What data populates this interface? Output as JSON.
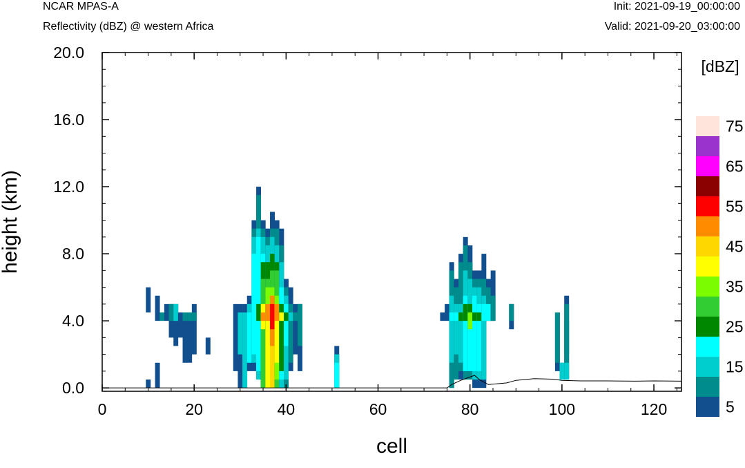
{
  "header": {
    "model": "NCAR MPAS-A",
    "field": "Reflectivity (dBZ) @ western Africa",
    "init": "Init: 2021-09-19_00:00:00",
    "valid": "Valid: 2021-09-20_03:00:00"
  },
  "chart_data": {
    "type": "heatmap",
    "xlabel": "cell",
    "ylabel": "height (km)",
    "xlim": [
      0,
      126
    ],
    "ylim": [
      -0.2,
      20
    ],
    "xticks": [
      0,
      20,
      40,
      60,
      80,
      100,
      120
    ],
    "yticks": [
      0,
      4,
      8,
      12,
      16,
      20
    ],
    "xtick_labels": [
      "0",
      "20",
      "40",
      "60",
      "80",
      "100",
      "120"
    ],
    "ytick_labels": [
      "0.0",
      "4.0",
      "8.0",
      "12.0",
      "16.0",
      "20.0"
    ],
    "colorbar": {
      "unit": "[dBZ]",
      "levels": [
        5,
        10,
        15,
        20,
        25,
        30,
        35,
        40,
        45,
        50,
        55,
        60,
        65,
        70,
        75
      ],
      "labels": [
        "5",
        "15",
        "25",
        "35",
        "45",
        "55",
        "65",
        "75"
      ],
      "colors": [
        "#124f8f",
        "#008c8c",
        "#00cdcd",
        "#00ffff",
        "#008700",
        "#32cd32",
        "#7cfc00",
        "#ffff00",
        "#ffd700",
        "#ff8c00",
        "#ff0000",
        "#8b0000",
        "#ff00ff",
        "#9a32cd",
        "#ffe4dc"
      ]
    },
    "cell_height_km": 0.5,
    "columns": [
      {
        "x": 10,
        "segs": [
          [
            0,
            0.3,
            5
          ],
          [
            4.5,
            6,
            5
          ]
        ]
      },
      {
        "x": 12,
        "segs": [
          [
            0,
            1.3,
            5
          ],
          [
            4,
            5.5,
            5
          ]
        ]
      },
      {
        "x": 13,
        "segs": [
          [
            4.3,
            4.5,
            10
          ]
        ]
      },
      {
        "x": 14,
        "segs": [
          [
            4.3,
            5,
            5
          ]
        ]
      },
      {
        "x": 15,
        "segs": [
          [
            3.3,
            4.8,
            5
          ],
          [
            4.3,
            4.6,
            10
          ]
        ]
      },
      {
        "x": 16,
        "segs": [
          [
            2.8,
            4.8,
            5
          ],
          [
            4.3,
            4.6,
            15
          ]
        ]
      },
      {
        "x": 17,
        "segs": [
          [
            3.2,
            4.5,
            5
          ]
        ]
      },
      {
        "x": 18,
        "segs": [
          [
            1.7,
            4.5,
            5
          ],
          [
            4.2,
            4.5,
            10
          ]
        ]
      },
      {
        "x": 19,
        "segs": [
          [
            1.7,
            4.5,
            5
          ],
          [
            4.2,
            4.5,
            10
          ]
        ]
      },
      {
        "x": 20,
        "segs": [
          [
            2.2,
            5,
            5
          ],
          [
            4.2,
            4.5,
            10
          ]
        ]
      },
      {
        "x": 23,
        "segs": [
          [
            2,
            3,
            5
          ]
        ]
      },
      {
        "x": 29,
        "segs": [
          [
            1.2,
            5,
            5
          ]
        ]
      },
      {
        "x": 30,
        "segs": [
          [
            0,
            5,
            5
          ],
          [
            2,
            4.5,
            15
          ]
        ]
      },
      {
        "x": 31,
        "segs": [
          [
            0,
            5,
            5
          ],
          [
            0.3,
            4.5,
            15
          ]
        ]
      },
      {
        "x": 32,
        "segs": [
          [
            1.3,
            5.2,
            5
          ],
          [
            1.5,
            4.6,
            15
          ],
          [
            1.8,
            4.4,
            20
          ]
        ]
      },
      {
        "x": 33,
        "segs": [
          [
            1.2,
            10,
            5
          ],
          [
            1.5,
            9.3,
            10
          ],
          [
            1.8,
            8.8,
            15
          ],
          [
            2.2,
            8,
            20
          ]
        ]
      },
      {
        "x": 34,
        "segs": [
          [
            0.5,
            12,
            5
          ],
          [
            0.6,
            11.3,
            10
          ],
          [
            0.8,
            9.5,
            15
          ],
          [
            1.2,
            8.6,
            20
          ],
          [
            4.3,
            4.6,
            25
          ]
        ]
      },
      {
        "x": 35,
        "segs": [
          [
            0,
            10,
            5
          ],
          [
            0,
            9.5,
            10
          ],
          [
            0,
            9,
            15
          ],
          [
            0,
            8,
            20
          ],
          [
            0,
            7.5,
            25
          ],
          [
            0,
            6.3,
            30
          ],
          [
            3.5,
            5,
            40
          ],
          [
            4.1,
            4.5,
            50
          ]
        ]
      },
      {
        "x": 36,
        "segs": [
          [
            0,
            9.5,
            5
          ],
          [
            0,
            9,
            10
          ],
          [
            0,
            8.5,
            15
          ],
          [
            0,
            7.5,
            25
          ],
          [
            0,
            6.5,
            30
          ],
          [
            0,
            5.6,
            35
          ],
          [
            0,
            5,
            40
          ],
          [
            4,
            4.6,
            50
          ]
        ]
      },
      {
        "x": 37,
        "segs": [
          [
            0,
            10.5,
            5
          ],
          [
            0,
            9.5,
            10
          ],
          [
            0,
            9,
            15
          ],
          [
            0,
            8,
            25
          ],
          [
            0,
            7,
            30
          ],
          [
            0,
            6,
            35
          ],
          [
            0,
            5.5,
            40
          ],
          [
            0,
            5.3,
            45
          ],
          [
            2.8,
            5.2,
            50
          ],
          [
            3.8,
            5,
            55
          ]
        ]
      },
      {
        "x": 38,
        "segs": [
          [
            0,
            10,
            5
          ],
          [
            0,
            9.5,
            10
          ],
          [
            0,
            8.5,
            15
          ],
          [
            0.2,
            7.5,
            25
          ],
          [
            0.2,
            6.8,
            30
          ],
          [
            0.5,
            5.2,
            35
          ],
          [
            1.5,
            4.8,
            40
          ],
          [
            4.2,
            4.6,
            50
          ]
        ]
      },
      {
        "x": 39,
        "segs": [
          [
            0,
            9.5,
            5
          ],
          [
            0,
            8.3,
            10
          ],
          [
            0.4,
            7.5,
            15
          ],
          [
            0.8,
            6,
            20
          ],
          [
            1.2,
            4.6,
            25
          ],
          [
            4.2,
            4.5,
            40
          ]
        ]
      },
      {
        "x": 40,
        "segs": [
          [
            0,
            6.5,
            5
          ],
          [
            0,
            6,
            10
          ],
          [
            0.6,
            5.5,
            15
          ],
          [
            2.8,
            5,
            20
          ],
          [
            4.2,
            4.5,
            25
          ]
        ]
      },
      {
        "x": 41,
        "segs": [
          [
            1.2,
            6,
            5
          ],
          [
            1.5,
            5,
            10
          ],
          [
            4.2,
            4.5,
            15
          ]
        ]
      },
      {
        "x": 42,
        "segs": [
          [
            2.2,
            5,
            5
          ],
          [
            4.2,
            4.5,
            10
          ]
        ]
      },
      {
        "x": 43,
        "segs": [
          [
            1.2,
            5,
            5
          ],
          [
            2.5,
            5,
            10
          ]
        ]
      },
      {
        "x": 51,
        "segs": [
          [
            0,
            2.2,
            5
          ],
          [
            0,
            2,
            10
          ],
          [
            0,
            1.8,
            15
          ],
          [
            0,
            1.3,
            20
          ]
        ]
      },
      {
        "x": 74,
        "segs": [
          [
            4.3,
            4.5,
            5
          ]
        ]
      },
      {
        "x": 75,
        "segs": [
          [
            4.1,
            4.6,
            5
          ]
        ]
      },
      {
        "x": 76,
        "segs": [
          [
            0,
            7.5,
            5
          ],
          [
            0.4,
            6.8,
            10
          ],
          [
            1.8,
            5.2,
            15
          ],
          [
            4.2,
            4.5,
            20
          ]
        ]
      },
      {
        "x": 77,
        "segs": [
          [
            0.6,
            6.5,
            5
          ],
          [
            0.8,
            6,
            10
          ],
          [
            2.4,
            5,
            15
          ],
          [
            4,
            4.3,
            20
          ]
        ]
      },
      {
        "x": 78,
        "segs": [
          [
            0.8,
            8,
            5
          ],
          [
            1.2,
            7.5,
            10
          ],
          [
            1.5,
            5,
            15
          ],
          [
            4.2,
            4.5,
            25
          ]
        ]
      },
      {
        "x": 79,
        "segs": [
          [
            0.6,
            8.8,
            5
          ],
          [
            0.8,
            8.2,
            10
          ],
          [
            1,
            7,
            15
          ],
          [
            1.3,
            5.3,
            20
          ],
          [
            4.2,
            4.6,
            25
          ]
        ]
      },
      {
        "x": 80,
        "segs": [
          [
            0.6,
            8.3,
            5
          ],
          [
            0.8,
            7.5,
            10
          ],
          [
            1,
            6.3,
            15
          ],
          [
            1.2,
            5,
            20
          ],
          [
            4.2,
            4.6,
            25
          ],
          [
            3.9,
            4.2,
            35
          ]
        ]
      },
      {
        "x": 81,
        "segs": [
          [
            0.4,
            7,
            5
          ],
          [
            0.6,
            6.5,
            10
          ],
          [
            0.8,
            6,
            15
          ],
          [
            1,
            5.5,
            20
          ],
          [
            4.1,
            4.5,
            25
          ]
        ]
      },
      {
        "x": 82,
        "segs": [
          [
            0.4,
            7,
            5
          ],
          [
            0.6,
            6.3,
            10
          ],
          [
            0.8,
            5.6,
            15
          ],
          [
            1,
            5,
            20
          ],
          [
            4.2,
            4.4,
            25
          ]
        ]
      },
      {
        "x": 83,
        "segs": [
          [
            0.4,
            8,
            5
          ],
          [
            0.6,
            6.3,
            10
          ],
          [
            0.8,
            5.5,
            15
          ],
          [
            4.2,
            4.6,
            20
          ]
        ]
      },
      {
        "x": 84,
        "segs": [
          [
            4,
            6.3,
            5
          ],
          [
            4.2,
            6,
            10
          ],
          [
            4.4,
            4.7,
            20
          ]
        ]
      },
      {
        "x": 85,
        "segs": [
          [
            4.2,
            6.8,
            5
          ],
          [
            4.4,
            5.5,
            10
          ]
        ]
      },
      {
        "x": 89,
        "segs": [
          [
            3.8,
            5,
            5
          ],
          [
            4.3,
            4.8,
            10
          ]
        ]
      },
      {
        "x": 99,
        "segs": [
          [
            1.2,
            4.5,
            5
          ],
          [
            1.5,
            4.2,
            10
          ]
        ]
      },
      {
        "x": 100,
        "segs": [
          [
            0.5,
            1.3,
            10
          ],
          [
            0.6,
            1.1,
            15
          ]
        ]
      },
      {
        "x": 101,
        "segs": [
          [
            0.5,
            5.3,
            5
          ],
          [
            0.6,
            5,
            10
          ],
          [
            0.8,
            1.3,
            15
          ],
          [
            2.2,
            3.8,
            10
          ]
        ]
      }
    ],
    "terrain_km": [
      [
        0,
        0
      ],
      [
        75,
        0
      ],
      [
        76,
        0.2
      ],
      [
        78,
        0.45
      ],
      [
        80,
        0.65
      ],
      [
        81,
        0.75
      ],
      [
        82,
        0.5
      ],
      [
        84,
        0.2
      ],
      [
        86,
        0.25
      ],
      [
        88,
        0.3
      ],
      [
        90,
        0.45
      ],
      [
        94,
        0.55
      ],
      [
        98,
        0.52
      ],
      [
        100,
        0.45
      ],
      [
        104,
        0.42
      ],
      [
        110,
        0.42
      ],
      [
        116,
        0.4
      ],
      [
        120,
        0.42
      ],
      [
        126,
        0.4
      ]
    ]
  }
}
